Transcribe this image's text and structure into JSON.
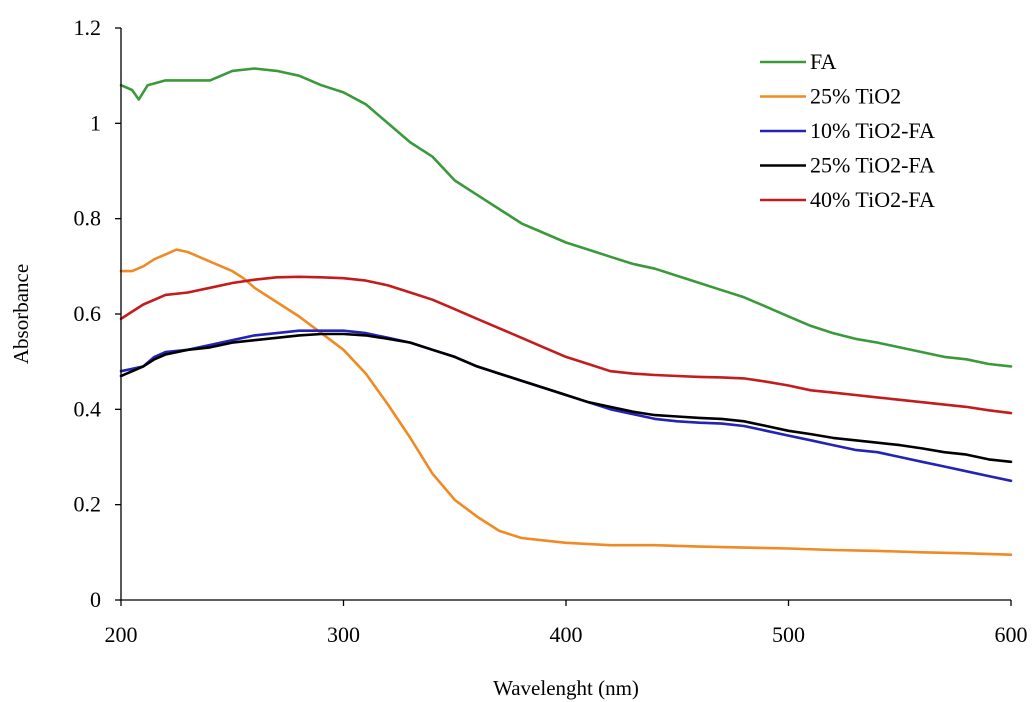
{
  "chart_data": {
    "type": "line",
    "title": "",
    "xlabel": "Wavelenght (nm)",
    "ylabel": "Absorbance",
    "xlim": [
      200,
      600
    ],
    "ylim": [
      0,
      1.2
    ],
    "x_ticks": [
      200,
      300,
      400,
      500,
      600
    ],
    "x_tick_labels": [
      "200",
      "300",
      "400",
      "500",
      "600"
    ],
    "y_ticks": [
      0,
      0.2,
      0.4,
      0.6,
      0.8,
      1.0,
      1.2
    ],
    "y_tick_labels": [
      "0",
      "0.2",
      "0.4",
      "0.6",
      "0.8",
      "1",
      "1.2"
    ],
    "grid": false,
    "legend_position": "top-right",
    "series": [
      {
        "name": "FA",
        "color": "#3a9a3a",
        "points": [
          [
            200,
            1.08
          ],
          [
            205,
            1.07
          ],
          [
            208,
            1.05
          ],
          [
            212,
            1.08
          ],
          [
            220,
            1.09
          ],
          [
            230,
            1.09
          ],
          [
            240,
            1.09
          ],
          [
            250,
            1.11
          ],
          [
            260,
            1.115
          ],
          [
            270,
            1.11
          ],
          [
            280,
            1.1
          ],
          [
            290,
            1.08
          ],
          [
            300,
            1.065
          ],
          [
            310,
            1.04
          ],
          [
            320,
            1.0
          ],
          [
            330,
            0.96
          ],
          [
            340,
            0.93
          ],
          [
            350,
            0.88
          ],
          [
            360,
            0.85
          ],
          [
            370,
            0.82
          ],
          [
            380,
            0.79
          ],
          [
            390,
            0.77
          ],
          [
            400,
            0.75
          ],
          [
            410,
            0.735
          ],
          [
            420,
            0.72
          ],
          [
            430,
            0.705
          ],
          [
            440,
            0.695
          ],
          [
            450,
            0.68
          ],
          [
            460,
            0.665
          ],
          [
            470,
            0.65
          ],
          [
            480,
            0.635
          ],
          [
            490,
            0.615
          ],
          [
            500,
            0.595
          ],
          [
            510,
            0.575
          ],
          [
            520,
            0.56
          ],
          [
            530,
            0.548
          ],
          [
            540,
            0.54
          ],
          [
            550,
            0.53
          ],
          [
            560,
            0.52
          ],
          [
            570,
            0.51
          ],
          [
            580,
            0.505
          ],
          [
            590,
            0.495
          ],
          [
            600,
            0.49
          ]
        ]
      },
      {
        "name": "25% TiO2",
        "color": "#f08a24",
        "points": [
          [
            200,
            0.69
          ],
          [
            205,
            0.69
          ],
          [
            210,
            0.7
          ],
          [
            215,
            0.715
          ],
          [
            220,
            0.725
          ],
          [
            225,
            0.735
          ],
          [
            230,
            0.73
          ],
          [
            235,
            0.72
          ],
          [
            240,
            0.71
          ],
          [
            245,
            0.7
          ],
          [
            250,
            0.69
          ],
          [
            255,
            0.675
          ],
          [
            260,
            0.655
          ],
          [
            270,
            0.625
          ],
          [
            280,
            0.595
          ],
          [
            290,
            0.56
          ],
          [
            300,
            0.525
          ],
          [
            310,
            0.475
          ],
          [
            320,
            0.41
          ],
          [
            330,
            0.34
          ],
          [
            340,
            0.265
          ],
          [
            350,
            0.21
          ],
          [
            360,
            0.175
          ],
          [
            370,
            0.145
          ],
          [
            380,
            0.13
          ],
          [
            390,
            0.125
          ],
          [
            400,
            0.12
          ],
          [
            420,
            0.115
          ],
          [
            440,
            0.115
          ],
          [
            460,
            0.112
          ],
          [
            480,
            0.11
          ],
          [
            500,
            0.108
          ],
          [
            520,
            0.105
          ],
          [
            540,
            0.103
          ],
          [
            560,
            0.1
          ],
          [
            580,
            0.098
          ],
          [
            600,
            0.095
          ]
        ]
      },
      {
        "name": "10% TiO2-FA",
        "color": "#2424b4",
        "points": [
          [
            200,
            0.48
          ],
          [
            210,
            0.49
          ],
          [
            215,
            0.51
          ],
          [
            220,
            0.52
          ],
          [
            230,
            0.525
          ],
          [
            240,
            0.535
          ],
          [
            250,
            0.545
          ],
          [
            260,
            0.555
          ],
          [
            270,
            0.56
          ],
          [
            280,
            0.565
          ],
          [
            290,
            0.565
          ],
          [
            300,
            0.565
          ],
          [
            310,
            0.56
          ],
          [
            320,
            0.55
          ],
          [
            330,
            0.54
          ],
          [
            340,
            0.525
          ],
          [
            350,
            0.51
          ],
          [
            360,
            0.49
          ],
          [
            370,
            0.475
          ],
          [
            380,
            0.46
          ],
          [
            390,
            0.445
          ],
          [
            400,
            0.43
          ],
          [
            410,
            0.415
          ],
          [
            420,
            0.4
          ],
          [
            430,
            0.39
          ],
          [
            440,
            0.38
          ],
          [
            450,
            0.375
          ],
          [
            460,
            0.372
          ],
          [
            470,
            0.37
          ],
          [
            480,
            0.365
          ],
          [
            490,
            0.355
          ],
          [
            500,
            0.345
          ],
          [
            510,
            0.335
          ],
          [
            520,
            0.325
          ],
          [
            530,
            0.315
          ],
          [
            540,
            0.31
          ],
          [
            550,
            0.3
          ],
          [
            560,
            0.29
          ],
          [
            570,
            0.28
          ],
          [
            580,
            0.27
          ],
          [
            590,
            0.26
          ],
          [
            600,
            0.25
          ]
        ]
      },
      {
        "name": "25% TiO2-FA",
        "color": "#000000",
        "points": [
          [
            200,
            0.47
          ],
          [
            210,
            0.49
          ],
          [
            215,
            0.505
          ],
          [
            220,
            0.515
          ],
          [
            230,
            0.525
          ],
          [
            240,
            0.53
          ],
          [
            250,
            0.54
          ],
          [
            260,
            0.545
          ],
          [
            270,
            0.55
          ],
          [
            280,
            0.555
          ],
          [
            290,
            0.558
          ],
          [
            300,
            0.558
          ],
          [
            310,
            0.555
          ],
          [
            320,
            0.548
          ],
          [
            330,
            0.54
          ],
          [
            340,
            0.525
          ],
          [
            350,
            0.51
          ],
          [
            360,
            0.49
          ],
          [
            370,
            0.475
          ],
          [
            380,
            0.46
          ],
          [
            390,
            0.445
          ],
          [
            400,
            0.43
          ],
          [
            410,
            0.415
          ],
          [
            420,
            0.405
          ],
          [
            430,
            0.395
          ],
          [
            440,
            0.388
          ],
          [
            450,
            0.385
          ],
          [
            460,
            0.382
          ],
          [
            470,
            0.38
          ],
          [
            480,
            0.375
          ],
          [
            490,
            0.365
          ],
          [
            500,
            0.355
          ],
          [
            510,
            0.348
          ],
          [
            520,
            0.34
          ],
          [
            530,
            0.335
          ],
          [
            540,
            0.33
          ],
          [
            550,
            0.325
          ],
          [
            560,
            0.318
          ],
          [
            570,
            0.31
          ],
          [
            580,
            0.305
          ],
          [
            590,
            0.295
          ],
          [
            600,
            0.29
          ]
        ]
      },
      {
        "name": "40% TiO2-FA",
        "color": "#c41c1c",
        "points": [
          [
            200,
            0.59
          ],
          [
            210,
            0.62
          ],
          [
            220,
            0.64
          ],
          [
            230,
            0.645
          ],
          [
            240,
            0.655
          ],
          [
            250,
            0.665
          ],
          [
            260,
            0.672
          ],
          [
            270,
            0.677
          ],
          [
            280,
            0.678
          ],
          [
            290,
            0.677
          ],
          [
            300,
            0.675
          ],
          [
            310,
            0.67
          ],
          [
            320,
            0.66
          ],
          [
            330,
            0.645
          ],
          [
            340,
            0.63
          ],
          [
            350,
            0.61
          ],
          [
            360,
            0.59
          ],
          [
            370,
            0.57
          ],
          [
            380,
            0.55
          ],
          [
            390,
            0.53
          ],
          [
            400,
            0.51
          ],
          [
            410,
            0.495
          ],
          [
            420,
            0.48
          ],
          [
            430,
            0.475
          ],
          [
            440,
            0.472
          ],
          [
            450,
            0.47
          ],
          [
            460,
            0.468
          ],
          [
            470,
            0.467
          ],
          [
            480,
            0.465
          ],
          [
            490,
            0.458
          ],
          [
            500,
            0.45
          ],
          [
            510,
            0.44
          ],
          [
            520,
            0.435
          ],
          [
            530,
            0.43
          ],
          [
            540,
            0.425
          ],
          [
            550,
            0.42
          ],
          [
            560,
            0.415
          ],
          [
            570,
            0.41
          ],
          [
            580,
            0.405
          ],
          [
            590,
            0.398
          ],
          [
            600,
            0.392
          ]
        ]
      }
    ]
  }
}
